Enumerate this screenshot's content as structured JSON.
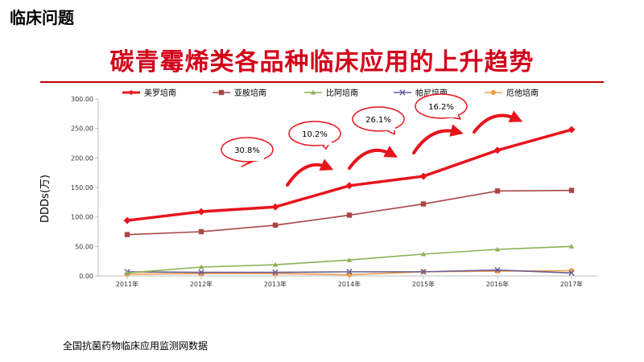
{
  "header": {
    "section_label": "临床问题",
    "title": "碳青霉烯类各品种临床应用的上升趋势"
  },
  "source_note": "全国抗菌药物临床应用监测网数据",
  "chart_data": {
    "type": "line",
    "ylabel": "DDDs(万)",
    "xlabel": "",
    "categories": [
      "2011年",
      "2012年",
      "2013年",
      "2014年",
      "2015年",
      "2016年",
      "2017年"
    ],
    "ylim": [
      0,
      300
    ],
    "yticks": [
      "0.00",
      "50.00",
      "100.00",
      "150.00",
      "200.00",
      "250.00",
      "300.00"
    ],
    "grid": false,
    "legend": "top",
    "series": [
      {
        "name": "美罗培南",
        "values": [
          94,
          109,
          117,
          153,
          169,
          213,
          248
        ],
        "color": "#e8141c",
        "marker": "diamond",
        "width": 3.5
      },
      {
        "name": "亚胺培南",
        "values": [
          70,
          75,
          86,
          103,
          122,
          144,
          145
        ],
        "color": "#a94744",
        "marker": "square",
        "width": 1.6
      },
      {
        "name": "比阿培南",
        "values": [
          5,
          15,
          19,
          27,
          37,
          45,
          50
        ],
        "color": "#8db155",
        "marker": "triangle",
        "width": 1.6
      },
      {
        "name": "帕尼培南",
        "values": [
          7,
          6,
          6,
          7,
          7,
          10,
          5
        ],
        "color": "#6b5b95",
        "marker": "cross",
        "width": 1.6
      },
      {
        "name": "厄他培南",
        "values": [
          3,
          4,
          4,
          2,
          7,
          8,
          9
        ],
        "color": "#f0a04b",
        "marker": "circle",
        "width": 1.6
      }
    ],
    "annotations": [
      "30.8%",
      "10.2%",
      "26.1%",
      "16.2%"
    ],
    "annotation_color": "#e8141c"
  }
}
